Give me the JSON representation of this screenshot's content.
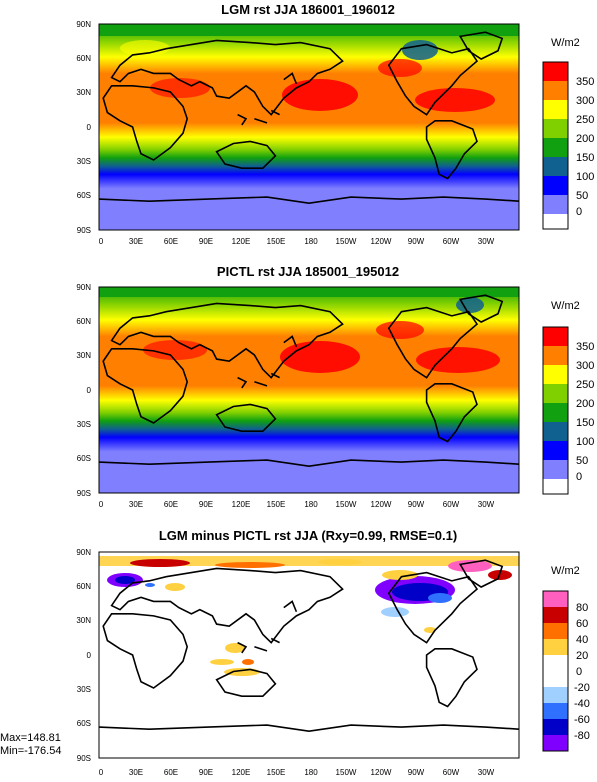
{
  "panels": [
    {
      "title": "LGM rst JJA 186001_196012",
      "units": "W/m2",
      "colorbar": {
        "labels": [
          "350",
          "300",
          "250",
          "200",
          "150",
          "100",
          "50",
          "0"
        ],
        "colors": [
          "#ff0000",
          "#ff8000",
          "#ffff00",
          "#80d000",
          "#10a010",
          "#106090",
          "#0000ff",
          "#8080ff",
          "#ffffff"
        ]
      }
    },
    {
      "title": "PICTL rst JJA 185001_195012",
      "units": "W/m2",
      "colorbar": {
        "labels": [
          "350",
          "300",
          "250",
          "200",
          "150",
          "100",
          "50",
          "0"
        ],
        "colors": [
          "#ff0000",
          "#ff8000",
          "#ffff00",
          "#80d000",
          "#10a010",
          "#106090",
          "#0000ff",
          "#8080ff",
          "#ffffff"
        ]
      }
    },
    {
      "title": "LGM minus PICTL rst JJA (Rxy=0.99, RMSE=0.1)",
      "units": "W/m2",
      "colorbar": {
        "labels": [
          "80",
          "60",
          "40",
          "20",
          "0",
          "-20",
          "-40",
          "-60",
          "-80"
        ],
        "colors": [
          "#ff60c0",
          "#c80000",
          "#ff7000",
          "#ffd040",
          "#ffffff",
          "#ffffff",
          "#a0d0ff",
          "#3070ff",
          "#0000c8",
          "#8000ff"
        ]
      },
      "stats": {
        "max": "Max=148.81",
        "min": "Min=-176.54"
      }
    }
  ],
  "axes": {
    "lat_labels": [
      "90N",
      "60N",
      "30N",
      "0",
      "30S",
      "60S",
      "90S"
    ],
    "lon_labels": [
      "0",
      "30E",
      "60E",
      "90E",
      "120E",
      "150E",
      "180",
      "150W",
      "120W",
      "90W",
      "60W",
      "30W"
    ]
  }
}
